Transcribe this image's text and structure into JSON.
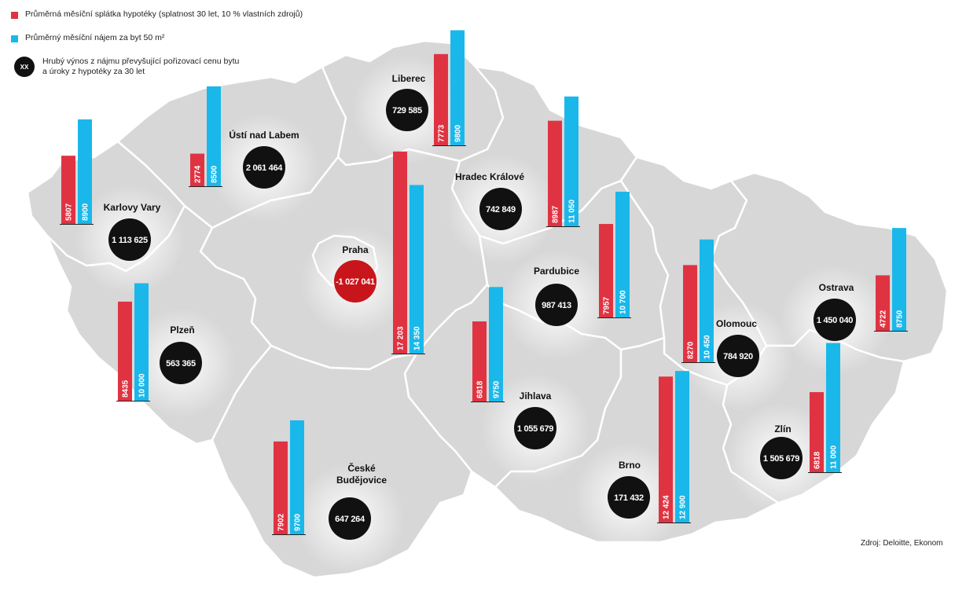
{
  "legend": {
    "mortgage_label": "Průměrná měsíční splátka hypotéky (splatnost 30 let, 10 % vlastních zdrojů)",
    "rent_label": "Průměrný měsíční nájem za byt 50 m²",
    "yield_symbol": "XX",
    "yield_line1": "Hrubý výnos z nájmu převyšující pořizovací cenu bytu",
    "yield_line2": "a úroky z hypotéky za 30 let"
  },
  "source": "Zdroj: Deloitte, Ekonom",
  "colors": {
    "mortgage": "#e03342",
    "rent": "#1ab8ea",
    "circle": "#111111",
    "circle_negative": "#c8151b",
    "land": "#d7d7d7",
    "border": "#ffffff"
  },
  "cities": [
    {
      "name": "Karlovy Vary",
      "mortgage": 5807,
      "mortgage_label": "5807",
      "rent": 8900,
      "rent_label": "8900",
      "yield": "1 113 625"
    },
    {
      "name": "Ústí nad Labem",
      "mortgage": 2774,
      "mortgage_label": "2774",
      "rent": 8500,
      "rent_label": "8500",
      "yield": "2 061 464"
    },
    {
      "name": "Liberec",
      "mortgage": 7773,
      "mortgage_label": "7773",
      "rent": 9800,
      "rent_label": "9800",
      "yield": "729 585"
    },
    {
      "name": "Hradec Králové",
      "mortgage": 8987,
      "mortgage_label": "8987",
      "rent": 11050,
      "rent_label": "11 050",
      "yield": "742 849"
    },
    {
      "name": "Praha",
      "mortgage": 17203,
      "mortgage_label": "17 203",
      "rent": 14350,
      "rent_label": "14 350",
      "yield": "-1 027 041",
      "negative": true
    },
    {
      "name": "Pardubice",
      "mortgage": 7957,
      "mortgage_label": "7957",
      "rent": 10700,
      "rent_label": "10 700",
      "yield": "987 413"
    },
    {
      "name": "Olomouc",
      "mortgage": 8270,
      "mortgage_label": "8270",
      "rent": 10450,
      "rent_label": "10 450",
      "yield": "784 920"
    },
    {
      "name": "Ostrava",
      "mortgage": 4722,
      "mortgage_label": "4722",
      "rent": 8750,
      "rent_label": "8750",
      "yield": "1 450 040"
    },
    {
      "name": "Plzeň",
      "mortgage": 8435,
      "mortgage_label": "8435",
      "rent": 10000,
      "rent_label": "10 000",
      "yield": "563 365"
    },
    {
      "name": "Jihlava",
      "mortgage": 6818,
      "mortgage_label": "6818",
      "rent": 9750,
      "rent_label": "9750",
      "yield": "1 055 679"
    },
    {
      "name": "Zlín",
      "mortgage": 6818,
      "mortgage_label": "6818",
      "rent": 11000,
      "rent_label": "11 000",
      "yield": "1 505 679"
    },
    {
      "name": "České Budějovice",
      "mortgage": 7902,
      "mortgage_label": "7902",
      "rent": 9700,
      "rent_label": "9700",
      "yield": "647 264"
    },
    {
      "name": "Brno",
      "mortgage": 12424,
      "mortgage_label": "12 424",
      "rent": 12900,
      "rent_label": "12 900",
      "yield": "171 432"
    }
  ]
}
